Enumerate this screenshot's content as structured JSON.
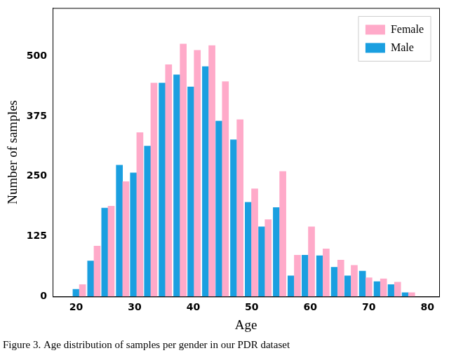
{
  "chart_data": {
    "type": "bar",
    "title": "Figure 3. Age distribution of samples per gender in our PDR dataset",
    "x_label": "Age",
    "y_label": "Number of samples",
    "series": [
      {
        "name": "Female",
        "color": "#ffaac9",
        "x": [
          21.1,
          23.6,
          26.0,
          28.5,
          30.9,
          33.3,
          35.8,
          38.3,
          40.7,
          43.2,
          45.5,
          48.0,
          50.5,
          52.8,
          55.3,
          57.8,
          60.2,
          62.7,
          65.2,
          67.5,
          70.0,
          72.5,
          74.9,
          77.3
        ],
        "values": [
          25,
          105,
          188,
          239,
          341,
          444,
          482,
          525,
          512,
          522,
          447,
          368,
          224,
          160,
          260,
          86,
          145,
          99,
          76,
          65,
          39,
          37,
          30,
          8
        ]
      },
      {
        "name": "Male",
        "color": "#1a9fe0",
        "x": [
          20.0,
          22.5,
          24.9,
          27.4,
          29.8,
          32.2,
          34.7,
          37.2,
          39.6,
          42.1,
          44.4,
          46.9,
          49.4,
          51.7,
          54.2,
          56.7,
          59.1,
          61.6,
          64.1,
          66.4,
          68.9,
          71.4,
          73.8,
          76.2
        ],
        "values": [
          15,
          74,
          184,
          273,
          257,
          313,
          444,
          461,
          436,
          478,
          365,
          326,
          196,
          145,
          185,
          43,
          86,
          85,
          61,
          43,
          53,
          31,
          25,
          8
        ]
      }
    ],
    "xlim": [
      16,
      82
    ],
    "xticks": [
      20,
      30,
      40,
      50,
      60,
      70,
      80
    ],
    "ylim": [
      0,
      600
    ],
    "yticks": [
      0,
      125,
      250,
      375,
      500
    ],
    "grid": false,
    "legend": "top-right"
  }
}
